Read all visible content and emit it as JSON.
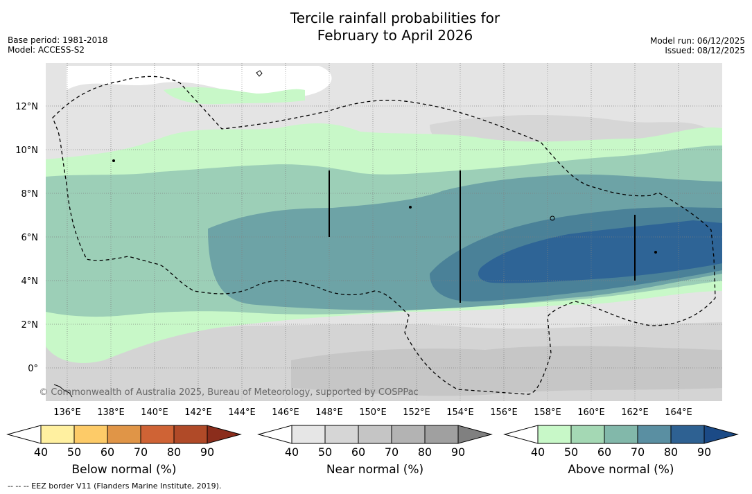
{
  "header": {
    "title_line1": "Tercile rainfall probabilities for",
    "title_line2": "February to April 2026",
    "base_period": "Base period: 1981-2018",
    "model": "Model: ACCESS-S2",
    "model_run": "Model run: 06/12/2025",
    "issued": "Issued: 08/12/2025"
  },
  "map": {
    "lon_labels": [
      "136°E",
      "138°E",
      "140°E",
      "142°E",
      "144°E",
      "146°E",
      "148°E",
      "150°E",
      "152°E",
      "154°E",
      "156°E",
      "158°E",
      "160°E",
      "162°E",
      "164°E"
    ],
    "lat_labels": [
      "12°N",
      "10°N",
      "8°N",
      "6°N",
      "4°N",
      "2°N",
      "0°"
    ],
    "copyright": "© Commonwealth of Australia 2025, Bureau of Meteorology, supported by COSPPac"
  },
  "legends": {
    "below": {
      "title": "Below normal (%)",
      "ticks": [
        "40",
        "50",
        "60",
        "70",
        "80",
        "90"
      ],
      "colors": [
        "#fff0a0",
        "#fdcb68",
        "#e09547",
        "#cf6335",
        "#b04a28",
        "#8b2d1c"
      ]
    },
    "near": {
      "title": "Near normal (%)",
      "ticks": [
        "40",
        "50",
        "60",
        "70",
        "80",
        "90"
      ],
      "colors": [
        "#e6e6e6",
        "#d6d6d6",
        "#c5c5c5",
        "#b3b3b3",
        "#a0a0a0",
        "#808080"
      ]
    },
    "above": {
      "title": "Above normal (%)",
      "ticks": [
        "40",
        "50",
        "60",
        "70",
        "80",
        "90"
      ],
      "colors": [
        "#c8f8c8",
        "#a4d8b4",
        "#82b8aa",
        "#5a8fa2",
        "#2e6192",
        "#1b4a86"
      ]
    }
  },
  "footer": {
    "eez_note": "--  --  -- EEZ border V11 (Flanders Marine Institute, 2019)."
  }
}
